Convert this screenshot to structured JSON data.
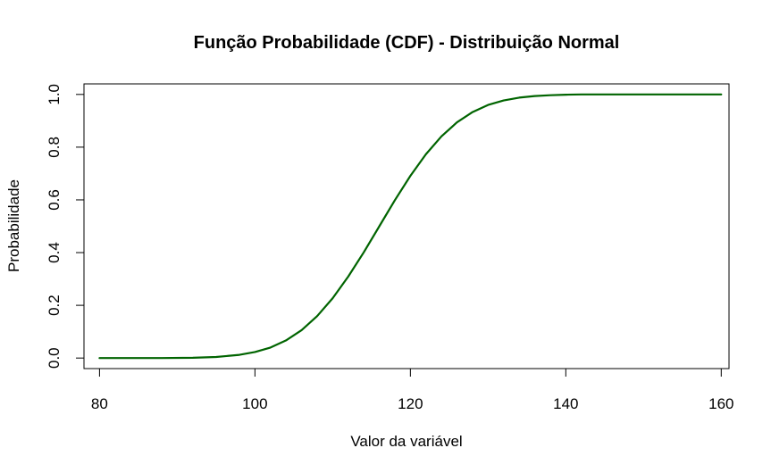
{
  "chart_data": {
    "type": "line",
    "title": "Função Probabilidade (CDF) - Distribuição Normal",
    "xlabel": "Valor da variável",
    "ylabel": "Probabilidade",
    "xlim": [
      78,
      161
    ],
    "ylim": [
      -0.04,
      1.04
    ],
    "x_ticks": [
      80,
      100,
      120,
      140,
      160
    ],
    "x_tick_labels": [
      "80",
      "100",
      "120",
      "140",
      "160"
    ],
    "y_ticks": [
      0.0,
      0.2,
      0.4,
      0.6,
      0.8,
      1.0
    ],
    "y_tick_labels": [
      "0.0",
      "0.2",
      "0.4",
      "0.6",
      "0.8",
      "1.0"
    ],
    "grid": false,
    "series": [
      {
        "color": "#006400",
        "x": [
          80,
          84,
          88,
          92,
          95,
          98,
          100,
          102,
          104,
          106,
          108,
          110,
          112,
          114,
          116,
          118,
          120,
          122,
          124,
          126,
          128,
          130,
          132,
          134,
          136,
          138,
          140,
          142,
          144,
          146,
          150,
          155,
          160
        ],
        "y": [
          0.0,
          0.0,
          0.0,
          0.001,
          0.004,
          0.012,
          0.023,
          0.04,
          0.067,
          0.106,
          0.159,
          0.227,
          0.309,
          0.401,
          0.5,
          0.599,
          0.691,
          0.773,
          0.841,
          0.894,
          0.933,
          0.96,
          0.977,
          0.988,
          0.994,
          0.997,
          0.999,
          1.0,
          1.0,
          1.0,
          1.0,
          1.0,
          1.0
        ]
      }
    ]
  }
}
